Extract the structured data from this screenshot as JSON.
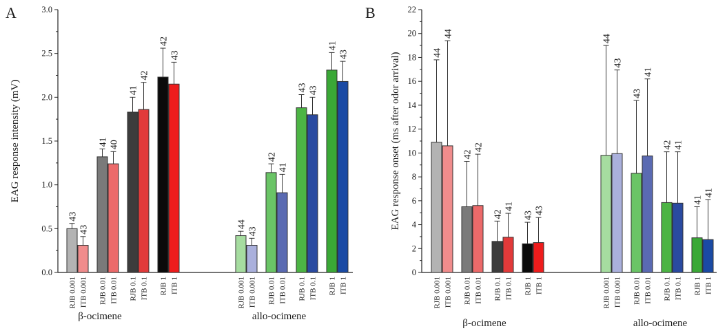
{
  "chart_data": [
    {
      "panel_label": "A",
      "type": "bar",
      "ylabel": "EAG response intensity (mV)",
      "ylim": [
        0,
        3.0
      ],
      "yticks": [
        "0.0",
        "0.5",
        "1.0",
        "1.5",
        "2.0",
        "2.5",
        "3.0"
      ],
      "groups": [
        {
          "label": "β-ocimene",
          "bars": [
            {
              "category": "RJB 0.001",
              "value": 0.5,
              "err": 0.06,
              "n": "43",
              "color": "#b3b3b3"
            },
            {
              "category": "ITB  0.001",
              "value": 0.31,
              "err": 0.1,
              "n": "43",
              "color": "#f08c8c"
            },
            {
              "category": "RJB 0.01",
              "value": 1.32,
              "err": 0.09,
              "n": "41",
              "color": "#7a7a7a"
            },
            {
              "category": "ITB  0.01",
              "value": 1.24,
              "err": 0.14,
              "n": "40",
              "color": "#ec6a6a"
            },
            {
              "category": "RJB 0.1",
              "value": 1.83,
              "err": 0.17,
              "n": "41",
              "color": "#3c3c3c"
            },
            {
              "category": "ITB  0.1",
              "value": 1.86,
              "err": 0.31,
              "n": "42",
              "color": "#e23a3a"
            },
            {
              "category": "RJB 1",
              "value": 2.23,
              "err": 0.33,
              "n": "42",
              "color": "#0a0a0a"
            },
            {
              "category": "ITB  1",
              "value": 2.15,
              "err": 0.25,
              "n": "43",
              "color": "#ee1c1c"
            }
          ]
        },
        {
          "label": "allo-ocimene",
          "bars": [
            {
              "category": "RJB 0.001",
              "value": 0.42,
              "err": 0.05,
              "n": "44",
              "color": "#a6dca0"
            },
            {
              "category": "ITB  0.001",
              "value": 0.31,
              "err": 0.08,
              "n": "43",
              "color": "#aab0dc"
            },
            {
              "category": "RJB 0.01",
              "value": 1.14,
              "err": 0.1,
              "n": "42",
              "color": "#6ac466"
            },
            {
              "category": "ITB  0.01",
              "value": 0.91,
              "err": 0.21,
              "n": "41",
              "color": "#5a6ab2"
            },
            {
              "category": "RJB 0.1",
              "value": 1.88,
              "err": 0.15,
              "n": "43",
              "color": "#4cb444"
            },
            {
              "category": "ITB  0.1",
              "value": 1.8,
              "err": 0.2,
              "n": "43",
              "color": "#2a4aa0"
            },
            {
              "category": "RJB 1",
              "value": 2.31,
              "err": 0.2,
              "n": "41",
              "color": "#3aa836"
            },
            {
              "category": "ITB  1",
              "value": 2.18,
              "err": 0.23,
              "n": "43",
              "color": "#1a4aa4"
            }
          ]
        }
      ]
    },
    {
      "panel_label": "B",
      "type": "bar",
      "ylabel": "EAG response onset (ms after odor arrival)",
      "ylim": [
        0,
        22
      ],
      "yticks": [
        "0",
        "2",
        "4",
        "6",
        "8",
        "10",
        "12",
        "14",
        "16",
        "18",
        "20",
        "22"
      ],
      "groups": [
        {
          "label": "β-ocimene",
          "bars": [
            {
              "category": "RJB 0.001",
              "value": 10.9,
              "err": 6.9,
              "n": "44",
              "color": "#b3b3b3"
            },
            {
              "category": "ITB  0.001",
              "value": 10.6,
              "err": 8.8,
              "n": "44",
              "color": "#f08c8c"
            },
            {
              "category": "RJB 0.01",
              "value": 5.5,
              "err": 3.8,
              "n": "42",
              "color": "#7a7a7a"
            },
            {
              "category": "ITB  0.01",
              "value": 5.6,
              "err": 4.3,
              "n": "42",
              "color": "#ec6a6a"
            },
            {
              "category": "RJB 0.1",
              "value": 2.6,
              "err": 1.7,
              "n": "42",
              "color": "#3c3c3c"
            },
            {
              "category": "ITB  0.1",
              "value": 2.95,
              "err": 2.0,
              "n": "41",
              "color": "#e23a3a"
            },
            {
              "category": "RJB 1",
              "value": 2.4,
              "err": 1.8,
              "n": "43",
              "color": "#0a0a0a"
            },
            {
              "category": "ITB  1",
              "value": 2.5,
              "err": 2.1,
              "n": "43",
              "color": "#ee1c1c"
            }
          ]
        },
        {
          "label": "allo-ocimene",
          "bars": [
            {
              "category": "RJB 0.001",
              "value": 9.8,
              "err": 9.2,
              "n": "44",
              "color": "#a6dca0"
            },
            {
              "category": "ITB  0.001",
              "value": 9.95,
              "err": 7.0,
              "n": "43",
              "color": "#aab0dc"
            },
            {
              "category": "RJB 0.01",
              "value": 8.3,
              "err": 6.1,
              "n": "43",
              "color": "#6ac466"
            },
            {
              "category": "ITB  0.01",
              "value": 9.75,
              "err": 6.45,
              "n": "41",
              "color": "#5a6ab2"
            },
            {
              "category": "RJB 0.1",
              "value": 5.85,
              "err": 4.25,
              "n": "42",
              "color": "#4cb444"
            },
            {
              "category": "ITB  0.1",
              "value": 5.8,
              "err": 4.3,
              "n": "41",
              "color": "#2a4aa0"
            },
            {
              "category": "RJB 1",
              "value": 2.9,
              "err": 2.6,
              "n": "41",
              "color": "#3aa836"
            },
            {
              "category": "ITB  1",
              "value": 2.75,
              "err": 3.35,
              "n": "41",
              "color": "#1a4aa4"
            }
          ]
        }
      ]
    }
  ]
}
